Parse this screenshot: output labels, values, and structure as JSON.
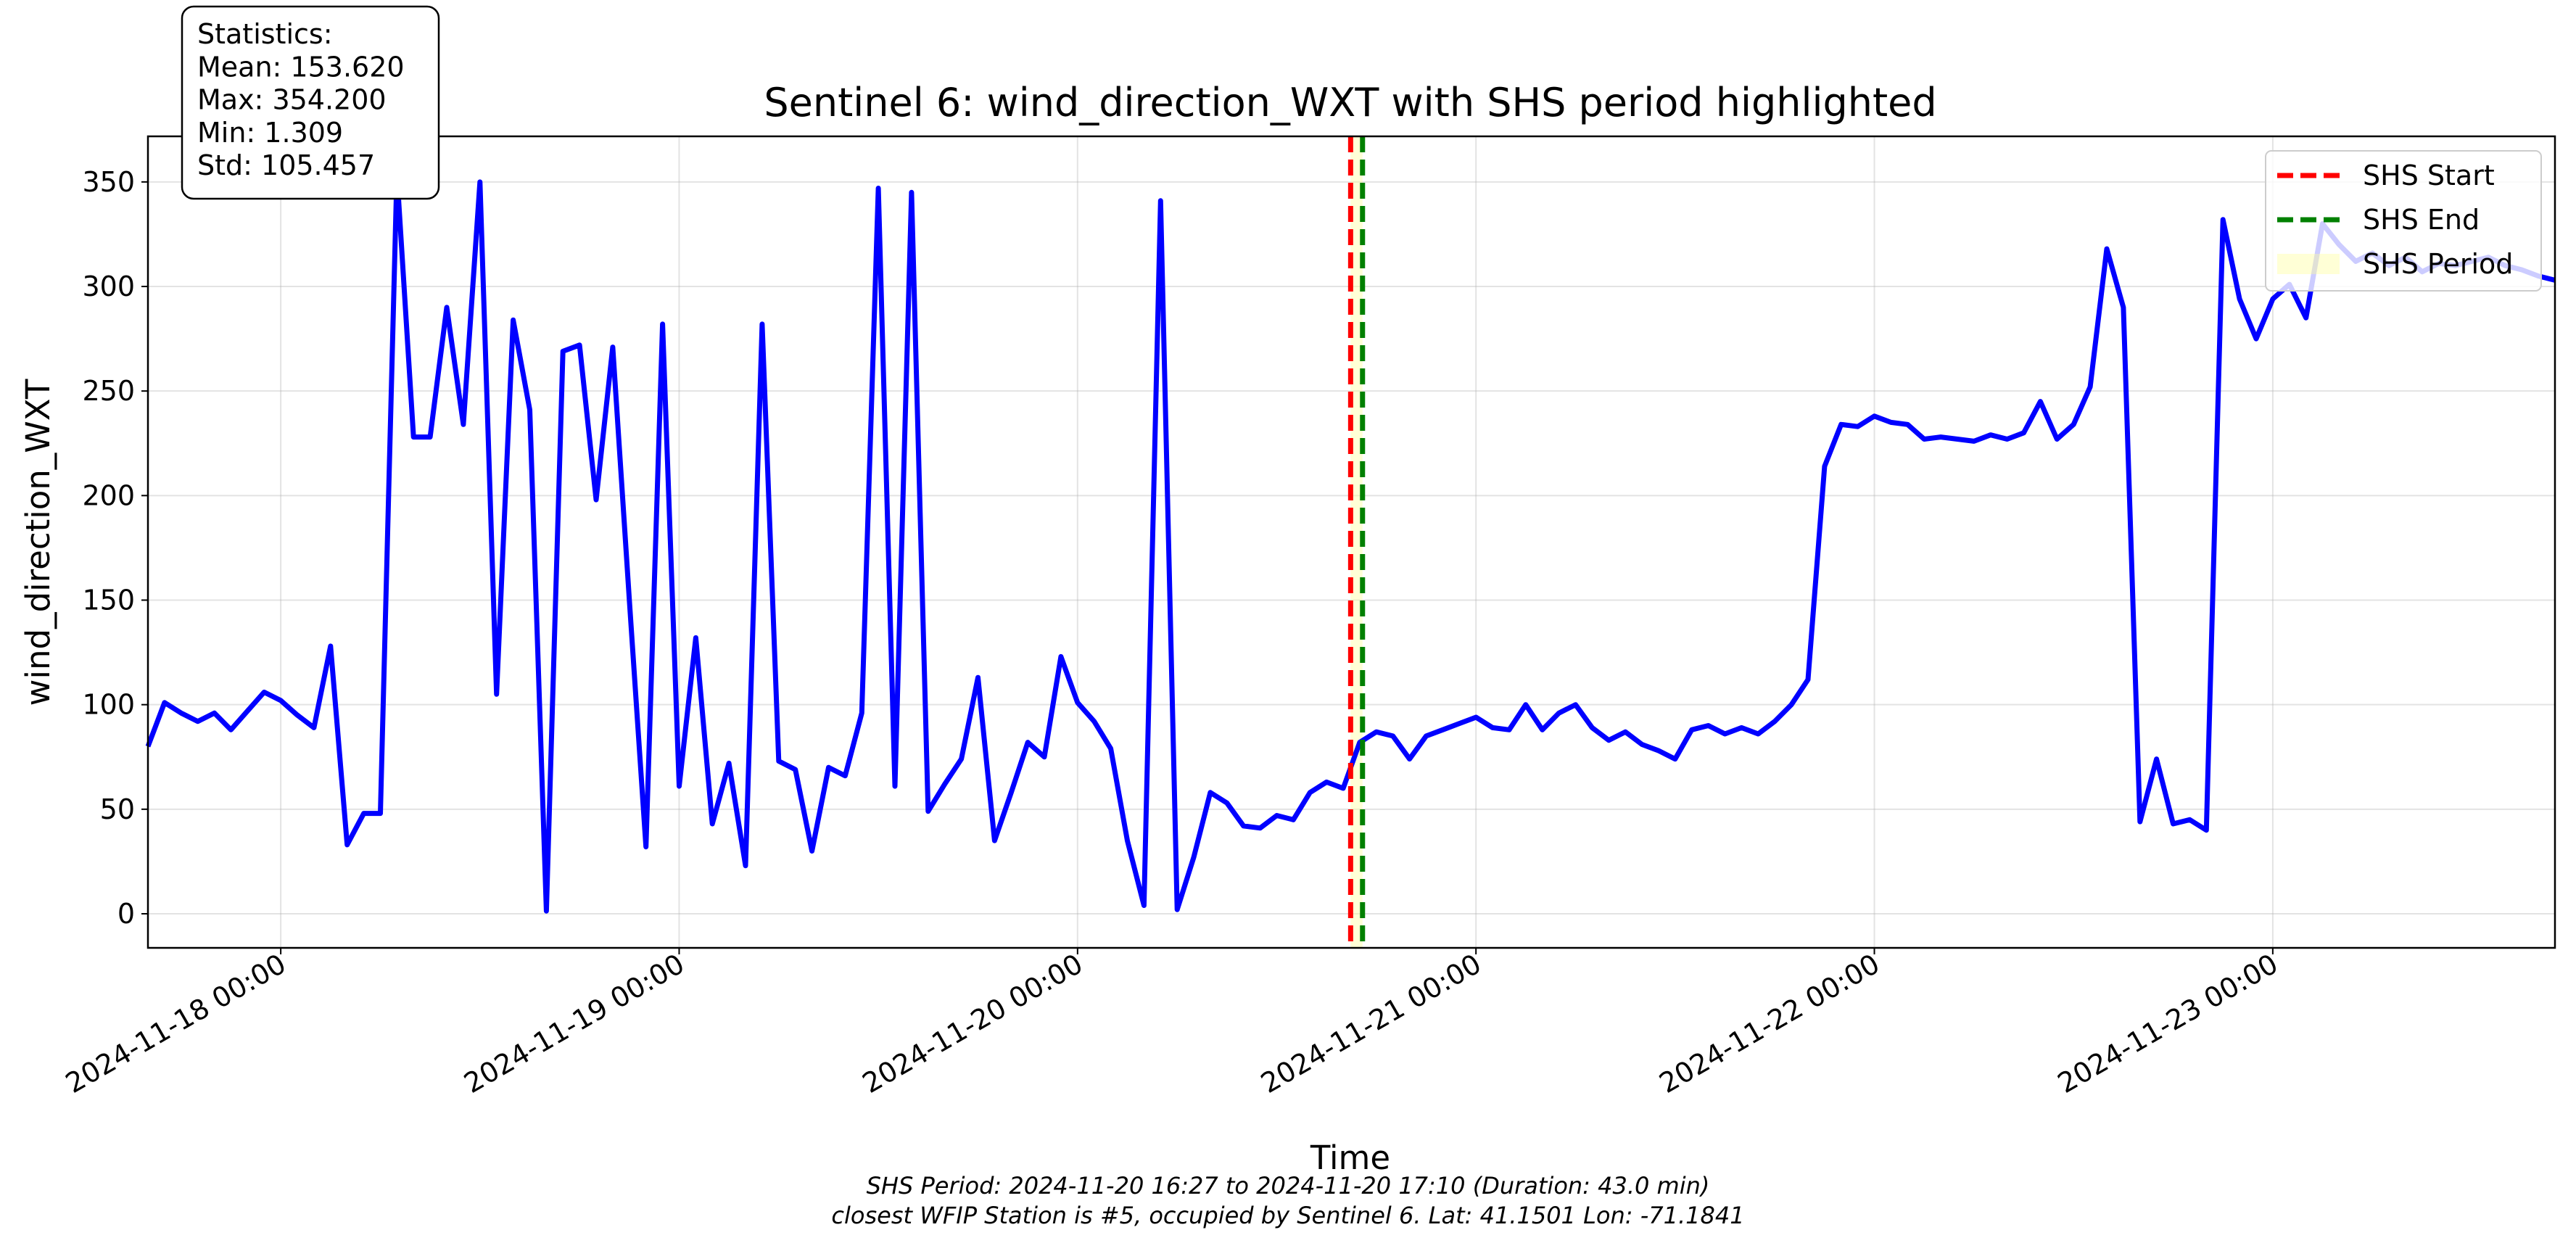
{
  "chart_data": {
    "type": "line",
    "title": "Sentinel 6: wind_direction_WXT with SHS period highlighted",
    "xlabel": "Time",
    "ylabel": "wind_direction_WXT",
    "footer": [
      "SHS Period: 2024-11-20 16:27 to 2024-11-20 17:10 (Duration: 43.0 min)",
      "closest WFIP Station is #5, occupied by Sentinel 6. Lat: 41.1501 Lon: -71.1841"
    ],
    "stats_box": [
      "Statistics:",
      "Mean: 153.620",
      "Max: 354.200",
      "Min: 1.309",
      "Std: 105.457"
    ],
    "color": "#0000ff",
    "grid": true,
    "legend": "upper right",
    "xlim": [
      "2024-11-17 16:00",
      "2024-11-23 17:00"
    ],
    "xticks": [
      "2024-11-18 00:00",
      "2024-11-19 00:00",
      "2024-11-20 00:00",
      "2024-11-21 00:00",
      "2024-11-22 00:00",
      "2024-11-23 00:00"
    ],
    "ylim": [
      -16.3,
      371.8
    ],
    "yticks": [
      0,
      50,
      100,
      150,
      200,
      250,
      300,
      350
    ],
    "markers": [
      {
        "name": "SHS Start",
        "x": "2024-11-20 16:27",
        "color": "#ff0000"
      },
      {
        "name": "SHS End",
        "x": "2024-11-20 17:10",
        "color": "#008000"
      }
    ],
    "span": {
      "name": "SHS Period",
      "x0": "2024-11-20 16:27",
      "x1": "2024-11-20 17:10",
      "color": "#ffff99"
    },
    "x": [
      "2024-11-17 16:00",
      "2024-11-17 17:00",
      "2024-11-17 18:00",
      "2024-11-17 19:00",
      "2024-11-17 20:00",
      "2024-11-17 21:00",
      "2024-11-17 22:00",
      "2024-11-17 23:00",
      "2024-11-18 00:00",
      "2024-11-18 01:00",
      "2024-11-18 02:00",
      "2024-11-18 03:00",
      "2024-11-18 04:00",
      "2024-11-18 05:00",
      "2024-11-18 06:00",
      "2024-11-18 07:00",
      "2024-11-18 08:00",
      "2024-11-18 09:00",
      "2024-11-18 10:00",
      "2024-11-18 11:00",
      "2024-11-18 12:00",
      "2024-11-18 13:00",
      "2024-11-18 14:00",
      "2024-11-18 15:00",
      "2024-11-18 16:00",
      "2024-11-18 17:00",
      "2024-11-18 18:00",
      "2024-11-18 19:00",
      "2024-11-18 20:00",
      "2024-11-18 21:00",
      "2024-11-18 22:00",
      "2024-11-18 23:00",
      "2024-11-19 00:00",
      "2024-11-19 01:00",
      "2024-11-19 02:00",
      "2024-11-19 03:00",
      "2024-11-19 04:00",
      "2024-11-19 05:00",
      "2024-11-19 06:00",
      "2024-11-19 07:00",
      "2024-11-19 08:00",
      "2024-11-19 09:00",
      "2024-11-19 10:00",
      "2024-11-19 11:00",
      "2024-11-19 12:00",
      "2024-11-19 13:00",
      "2024-11-19 14:00",
      "2024-11-19 15:00",
      "2024-11-19 16:00",
      "2024-11-19 17:00",
      "2024-11-19 18:00",
      "2024-11-19 19:00",
      "2024-11-19 20:00",
      "2024-11-19 21:00",
      "2024-11-19 22:00",
      "2024-11-19 23:00",
      "2024-11-20 00:00",
      "2024-11-20 01:00",
      "2024-11-20 02:00",
      "2024-11-20 03:00",
      "2024-11-20 04:00",
      "2024-11-20 05:00",
      "2024-11-20 06:00",
      "2024-11-20 07:00",
      "2024-11-20 08:00",
      "2024-11-20 09:00",
      "2024-11-20 10:00",
      "2024-11-20 11:00",
      "2024-11-20 12:00",
      "2024-11-20 13:00",
      "2024-11-20 14:00",
      "2024-11-20 15:00",
      "2024-11-20 16:00",
      "2024-11-20 17:00",
      "2024-11-20 18:00",
      "2024-11-20 19:00",
      "2024-11-20 20:00",
      "2024-11-20 21:00",
      "2024-11-20 22:00",
      "2024-11-20 23:00",
      "2024-11-21 00:00",
      "2024-11-21 01:00",
      "2024-11-21 02:00",
      "2024-11-21 03:00",
      "2024-11-21 04:00",
      "2024-11-21 05:00",
      "2024-11-21 06:00",
      "2024-11-21 07:00",
      "2024-11-21 08:00",
      "2024-11-21 09:00",
      "2024-11-21 10:00",
      "2024-11-21 11:00",
      "2024-11-21 12:00",
      "2024-11-21 13:00",
      "2024-11-21 14:00",
      "2024-11-21 15:00",
      "2024-11-21 16:00",
      "2024-11-21 17:00",
      "2024-11-21 18:00",
      "2024-11-21 19:00",
      "2024-11-21 20:00",
      "2024-11-21 21:00",
      "2024-11-21 22:00",
      "2024-11-21 23:00",
      "2024-11-22 00:00",
      "2024-11-22 01:00",
      "2024-11-22 02:00",
      "2024-11-22 03:00",
      "2024-11-22 04:00",
      "2024-11-22 05:00",
      "2024-11-22 06:00",
      "2024-11-22 07:00",
      "2024-11-22 08:00",
      "2024-11-22 09:00",
      "2024-11-22 10:00",
      "2024-11-22 11:00",
      "2024-11-22 12:00",
      "2024-11-22 13:00",
      "2024-11-22 14:00",
      "2024-11-22 15:00",
      "2024-11-22 16:00",
      "2024-11-22 17:00",
      "2024-11-22 18:00",
      "2024-11-22 19:00",
      "2024-11-22 20:00",
      "2024-11-22 21:00",
      "2024-11-22 22:00",
      "2024-11-22 23:00",
      "2024-11-23 00:00",
      "2024-11-23 01:00",
      "2024-11-23 02:00",
      "2024-11-23 03:00",
      "2024-11-23 04:00",
      "2024-11-23 05:00",
      "2024-11-23 06:00",
      "2024-11-23 07:00",
      "2024-11-23 08:00",
      "2024-11-23 09:00",
      "2024-11-23 10:00",
      "2024-11-23 11:00",
      "2024-11-23 12:00",
      "2024-11-23 13:00",
      "2024-11-23 14:00",
      "2024-11-23 15:00",
      "2024-11-23 16:00",
      "2024-11-23 17:00"
    ],
    "values": [
      80,
      101,
      96,
      92,
      96,
      88,
      97,
      106,
      102,
      95,
      89,
      128,
      33,
      48,
      48,
      354.2,
      228,
      228,
      290,
      234,
      350,
      105,
      284,
      241,
      1.309,
      269,
      272,
      198,
      271,
      150,
      32,
      282,
      61,
      132,
      43,
      72,
      23,
      282,
      73,
      69,
      30,
      70,
      66,
      96,
      347,
      61,
      345,
      49,
      62,
      74,
      113,
      35,
      58,
      82,
      75,
      123,
      101,
      92,
      79,
      35,
      4,
      341,
      2,
      27,
      58,
      53,
      42,
      41,
      47,
      45,
      58,
      63,
      60,
      82,
      87,
      85,
      74,
      85,
      88,
      91,
      94,
      89,
      88,
      100,
      88,
      96,
      100,
      89,
      83,
      87,
      81,
      78,
      74,
      88,
      90,
      86,
      89,
      86,
      92,
      100,
      112,
      214,
      234,
      233,
      238,
      235,
      234,
      227,
      228,
      227,
      226,
      229,
      227,
      230,
      245,
      227,
      234,
      252,
      318,
      290,
      44,
      74,
      43,
      45,
      40,
      332,
      294,
      275,
      294,
      301,
      285,
      330,
      320,
      312,
      316,
      310,
      314,
      307,
      311,
      310,
      312,
      314,
      310,
      308,
      305,
      303
    ]
  }
}
